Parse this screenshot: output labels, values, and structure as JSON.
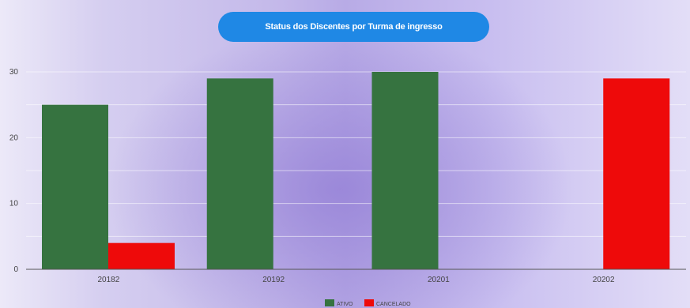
{
  "chart_data": {
    "type": "bar",
    "title": "Status dos Discentes por Turma de ingresso",
    "categories": [
      "20182",
      "20192",
      "20201",
      "20202"
    ],
    "series": [
      {
        "name": "ATIVO",
        "color": "#367340",
        "values": [
          25,
          29,
          30,
          0
        ]
      },
      {
        "name": "CANCELADO",
        "color": "#ee0a0a",
        "values": [
          4,
          0,
          0,
          29
        ]
      }
    ],
    "y_ticks": [
      "0",
      "10",
      "20",
      "30"
    ],
    "ylim": [
      0,
      30
    ],
    "xlabel": "",
    "ylabel": "",
    "grid": true,
    "legend": "bottom-center"
  }
}
